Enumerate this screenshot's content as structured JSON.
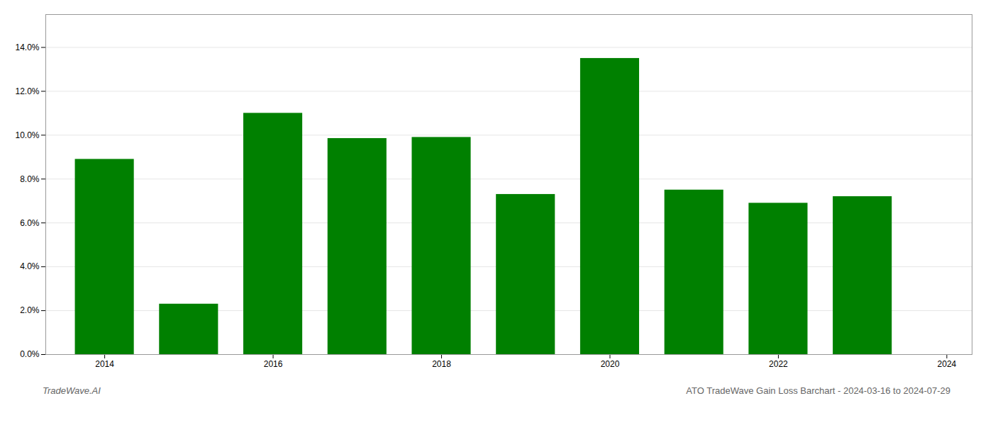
{
  "chart_data": {
    "type": "bar",
    "title": "ATO TradeWave Gain Loss Barchart - 2024-03-16 to 2024-07-29",
    "annotations": [
      "TradeWave.AI"
    ],
    "x": [
      2014,
      2015,
      2016,
      2017,
      2018,
      2019,
      2020,
      2021,
      2022,
      2023
    ],
    "values": [
      0.089,
      0.023,
      0.11,
      0.0985,
      0.099,
      0.073,
      0.135,
      0.075,
      0.069,
      0.072
    ],
    "color": "#008000",
    "xlim": [
      2013.3,
      2024.3
    ],
    "xticks": [
      2014,
      2016,
      2018,
      2020,
      2022,
      2024
    ],
    "ylim": [
      0,
      0.155
    ],
    "yticks": [
      {
        "value": 0.0,
        "label": "0.0%"
      },
      {
        "value": 0.02,
        "label": "2.0%"
      },
      {
        "value": 0.04,
        "label": "4.0%"
      },
      {
        "value": 0.06,
        "label": "6.0%"
      },
      {
        "value": 0.08,
        "label": "8.0%"
      },
      {
        "value": 0.1,
        "label": "10.0%"
      },
      {
        "value": 0.12,
        "label": "12.0%"
      },
      {
        "value": 0.14,
        "label": "14.0%"
      }
    ],
    "grid": true
  }
}
